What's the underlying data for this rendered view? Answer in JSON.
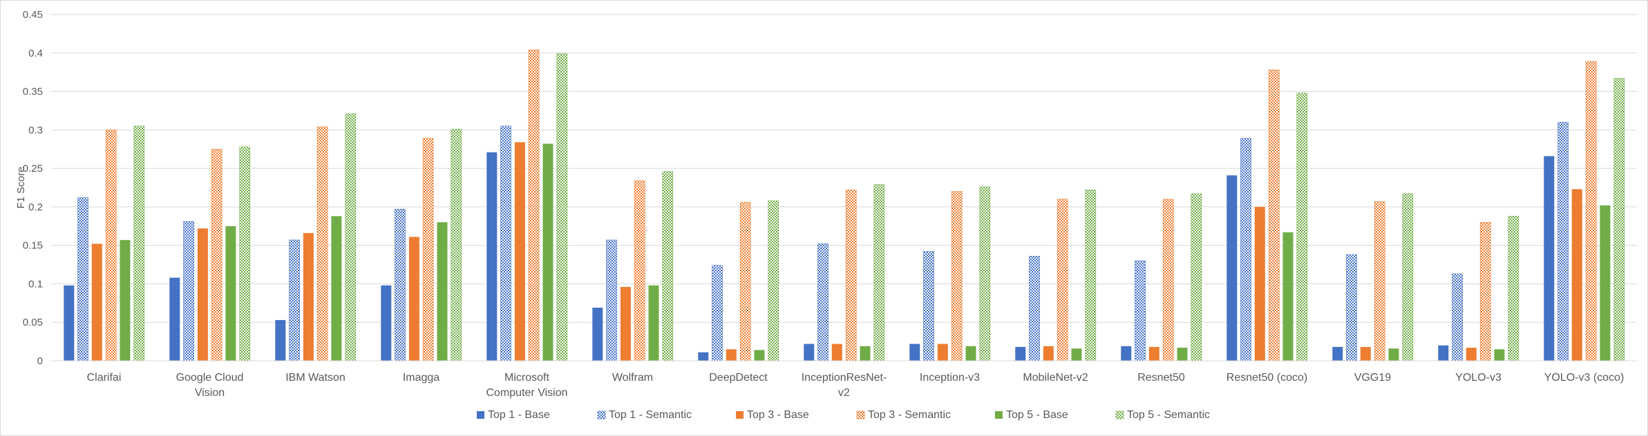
{
  "chart_data": {
    "type": "bar",
    "title": "",
    "xlabel": "",
    "ylabel": "F1 Score",
    "ylim": [
      0,
      0.45
    ],
    "yticks": [
      "0",
      "0.05",
      "0.1",
      "0.15",
      "0.2",
      "0.25",
      "0.3",
      "0.35",
      "0.4",
      "0.45"
    ],
    "grid": true,
    "legend_position": "bottom",
    "categories": [
      "Clarifai",
      "Google  Cloud\nVision",
      "IBM  Watson",
      "Imagga",
      "Microsoft\nComputer  Vision",
      "Wolfram",
      "DeepDetect",
      "InceptionResNet-\nv2",
      "Inception-v3",
      "MobileNet-v2",
      "Resnet50",
      "Resnet50  (coco)",
      "VGG19",
      "YOLO-v3",
      "YOLO-v3  (coco)"
    ],
    "series": [
      {
        "name": "Top 1 - Base",
        "color": "#4472c4",
        "pattern": "solid",
        "values": [
          0.098,
          0.108,
          0.053,
          0.098,
          0.271,
          0.069,
          0.011,
          0.022,
          0.022,
          0.018,
          0.019,
          0.241,
          0.018,
          0.02,
          0.266
        ]
      },
      {
        "name": "Top 1 - Semantic",
        "color": "#4472c4",
        "pattern": "checker",
        "values": [
          0.212,
          0.181,
          0.157,
          0.197,
          0.305,
          0.157,
          0.124,
          0.152,
          0.142,
          0.136,
          0.13,
          0.289,
          0.138,
          0.113,
          0.31
        ]
      },
      {
        "name": "Top 3 - Base",
        "color": "#ed7d31",
        "pattern": "solid",
        "values": [
          0.152,
          0.172,
          0.166,
          0.161,
          0.284,
          0.096,
          0.015,
          0.022,
          0.022,
          0.019,
          0.018,
          0.2,
          0.018,
          0.017,
          0.223
        ]
      },
      {
        "name": "Top 3 - Semantic",
        "color": "#ed7d31",
        "pattern": "checker",
        "values": [
          0.3,
          0.275,
          0.304,
          0.289,
          0.404,
          0.234,
          0.206,
          0.222,
          0.22,
          0.21,
          0.21,
          0.378,
          0.207,
          0.18,
          0.389
        ]
      },
      {
        "name": "Top 5 - Base",
        "color": "#70ad47",
        "pattern": "solid",
        "values": [
          0.157,
          0.175,
          0.188,
          0.18,
          0.282,
          0.098,
          0.014,
          0.019,
          0.019,
          0.016,
          0.017,
          0.167,
          0.016,
          0.015,
          0.202
        ]
      },
      {
        "name": "Top 5 - Semantic",
        "color": "#70ad47",
        "pattern": "checker",
        "values": [
          0.305,
          0.278,
          0.321,
          0.301,
          0.399,
          0.246,
          0.208,
          0.229,
          0.226,
          0.222,
          0.217,
          0.348,
          0.217,
          0.188,
          0.367
        ]
      }
    ]
  }
}
